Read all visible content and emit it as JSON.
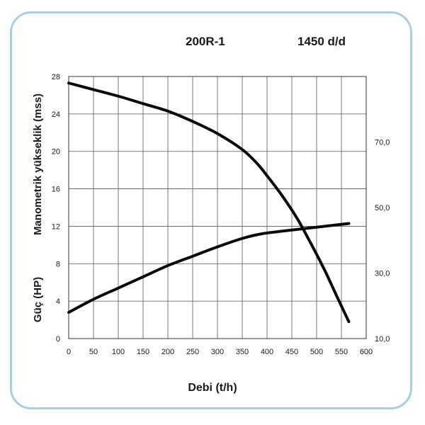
{
  "chart_data": {
    "type": "line",
    "title": "200R-1",
    "speed_label": "1450 d/d",
    "xlabel": "Debi (t/h)",
    "ylabel_head": "Manometrik yükseklik (mss)",
    "ylabel_power": "Güç (HP)",
    "xlim": [
      0,
      600
    ],
    "ylim": [
      0,
      28
    ],
    "x_ticks": [
      "0",
      "50",
      "100",
      "150",
      "200",
      "250",
      "300",
      "350",
      "400",
      "450",
      "500",
      "550",
      "600"
    ],
    "y_ticks": [
      "0",
      "4",
      "8",
      "12",
      "16",
      "20",
      "24",
      "28"
    ],
    "y2_ticks": [
      "10,0",
      "30,0",
      "50,0",
      "70,0"
    ],
    "grid": true,
    "series": [
      {
        "x": [
          0,
          50,
          100,
          150,
          200,
          250,
          300,
          350,
          380,
          400,
          430,
          460,
          480,
          500,
          520,
          540,
          565
        ],
        "y": [
          27.3,
          26.6,
          25.9,
          25.1,
          24.3,
          23.2,
          21.9,
          20.2,
          18.7,
          17.4,
          15.3,
          12.9,
          11.0,
          9.0,
          6.9,
          4.6,
          1.8
        ]
      },
      {
        "x": [
          0,
          50,
          100,
          150,
          200,
          250,
          300,
          350,
          390,
          450,
          500,
          565
        ],
        "y": [
          2.8,
          4.2,
          5.4,
          6.6,
          7.8,
          8.8,
          9.8,
          10.7,
          11.2,
          11.6,
          11.9,
          12.3
        ]
      }
    ],
    "colors": {
      "curve": "#0a0a0a",
      "grid": "#555555",
      "frame": "#a9cde3"
    }
  }
}
